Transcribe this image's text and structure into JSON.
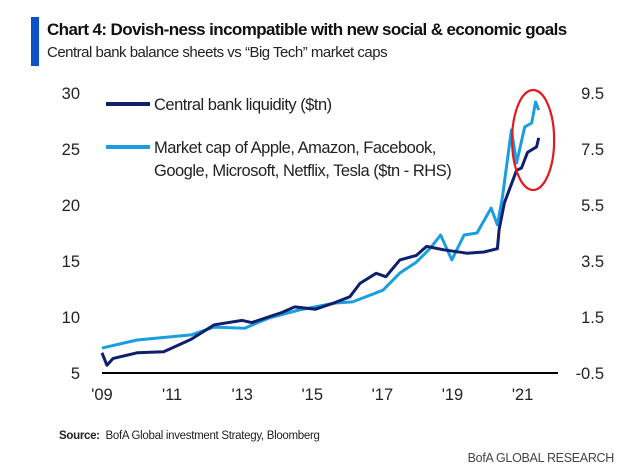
{
  "title": "Chart 4: Dovish-ness incompatible with new social & economic goals",
  "subtitle": "Central bank balance sheets vs “Big Tech” market caps",
  "source_label": "Source:",
  "source_text": "BofA Global investment Strategy, Bloomberg",
  "brand": "BofA GLOBAL RESEARCH",
  "chart_data": {
    "type": "line",
    "title": "Chart 4: Dovish-ness incompatible with new social & economic goals",
    "xlabel": "",
    "ylabel": "",
    "x_ticks": [
      "'09",
      "'11",
      "'13",
      "'15",
      "'17",
      "'19",
      "'21"
    ],
    "x_tick_values": [
      2009,
      2011,
      2013,
      2015,
      2017,
      2019,
      2021
    ],
    "xlim": [
      2009,
      2022.3
    ],
    "ylim": [
      5,
      30
    ],
    "y_ticks": [
      "30",
      "25",
      "20",
      "15",
      "10",
      "5"
    ],
    "y_tick_values": [
      30,
      25,
      20,
      15,
      10,
      5
    ],
    "y2lim": [
      -0.5,
      9.5
    ],
    "y2_ticks": [
      "9.5",
      "7.5",
      "5.5",
      "3.5",
      "1.5",
      "-0.5"
    ],
    "y2_tick_values": [
      9.5,
      7.5,
      5.5,
      3.5,
      1.5,
      -0.5
    ],
    "grid": false,
    "legend_placement": "top-left",
    "highlight": {
      "shape": "ellipse",
      "color": "#e3191e",
      "x_range": [
        2020.7,
        2021.9
      ],
      "note": "latest values circled"
    },
    "series": [
      {
        "name": "Central bank liquidity ($tn)",
        "axis": "left",
        "color": "#0f1f6b",
        "x": [
          2009.0,
          2009.14,
          2009.32,
          2010.0,
          2010.76,
          2011.54,
          2012.2,
          2013.0,
          2013.27,
          2014.13,
          2014.5,
          2015.09,
          2015.66,
          2016.07,
          2016.36,
          2016.82,
          2017.1,
          2017.5,
          2017.97,
          2018.26,
          2018.75,
          2019.41,
          2019.9,
          2020.28,
          2020.33,
          2020.48,
          2020.83,
          2020.97,
          2021.14,
          2021.4,
          2021.46
        ],
        "values": [
          6.8,
          5.7,
          6.3,
          6.8,
          6.9,
          8.0,
          9.3,
          9.7,
          9.5,
          10.4,
          10.9,
          10.7,
          11.3,
          11.8,
          13.0,
          13.9,
          13.6,
          15.1,
          15.5,
          16.3,
          16.0,
          15.7,
          15.8,
          16.1,
          17.8,
          20.2,
          23.1,
          23.3,
          24.7,
          25.2,
          26.0
        ]
      },
      {
        "name": "Market cap of Apple, Amazon, Facebook, Google, Microsoft, Netflix, Tesla ($tn - RHS)",
        "name_lines": [
          "Market cap of Apple, Amazon, Facebook,",
          "Google, Microsoft, Netflix, Tesla ($tn - RHS)"
        ],
        "axis": "right",
        "color": "#1a9ee0",
        "x": [
          2009.0,
          2010.0,
          2010.6,
          2011.54,
          2012.2,
          2013.07,
          2013.76,
          2014.62,
          2015.66,
          2016.15,
          2016.44,
          2017.02,
          2017.5,
          2017.97,
          2018.37,
          2018.66,
          2018.98,
          2019.33,
          2019.7,
          2020.1,
          2020.28,
          2020.42,
          2020.68,
          2020.83,
          2021.06,
          2021.26,
          2021.37,
          2021.46
        ],
        "values": [
          0.39,
          0.68,
          0.75,
          0.86,
          1.14,
          1.1,
          1.46,
          1.75,
          2.0,
          2.04,
          2.18,
          2.46,
          3.07,
          3.46,
          3.96,
          4.43,
          3.54,
          4.43,
          4.5,
          5.39,
          4.79,
          5.75,
          8.18,
          7.0,
          8.29,
          8.43,
          9.18,
          8.89
        ]
      }
    ]
  }
}
